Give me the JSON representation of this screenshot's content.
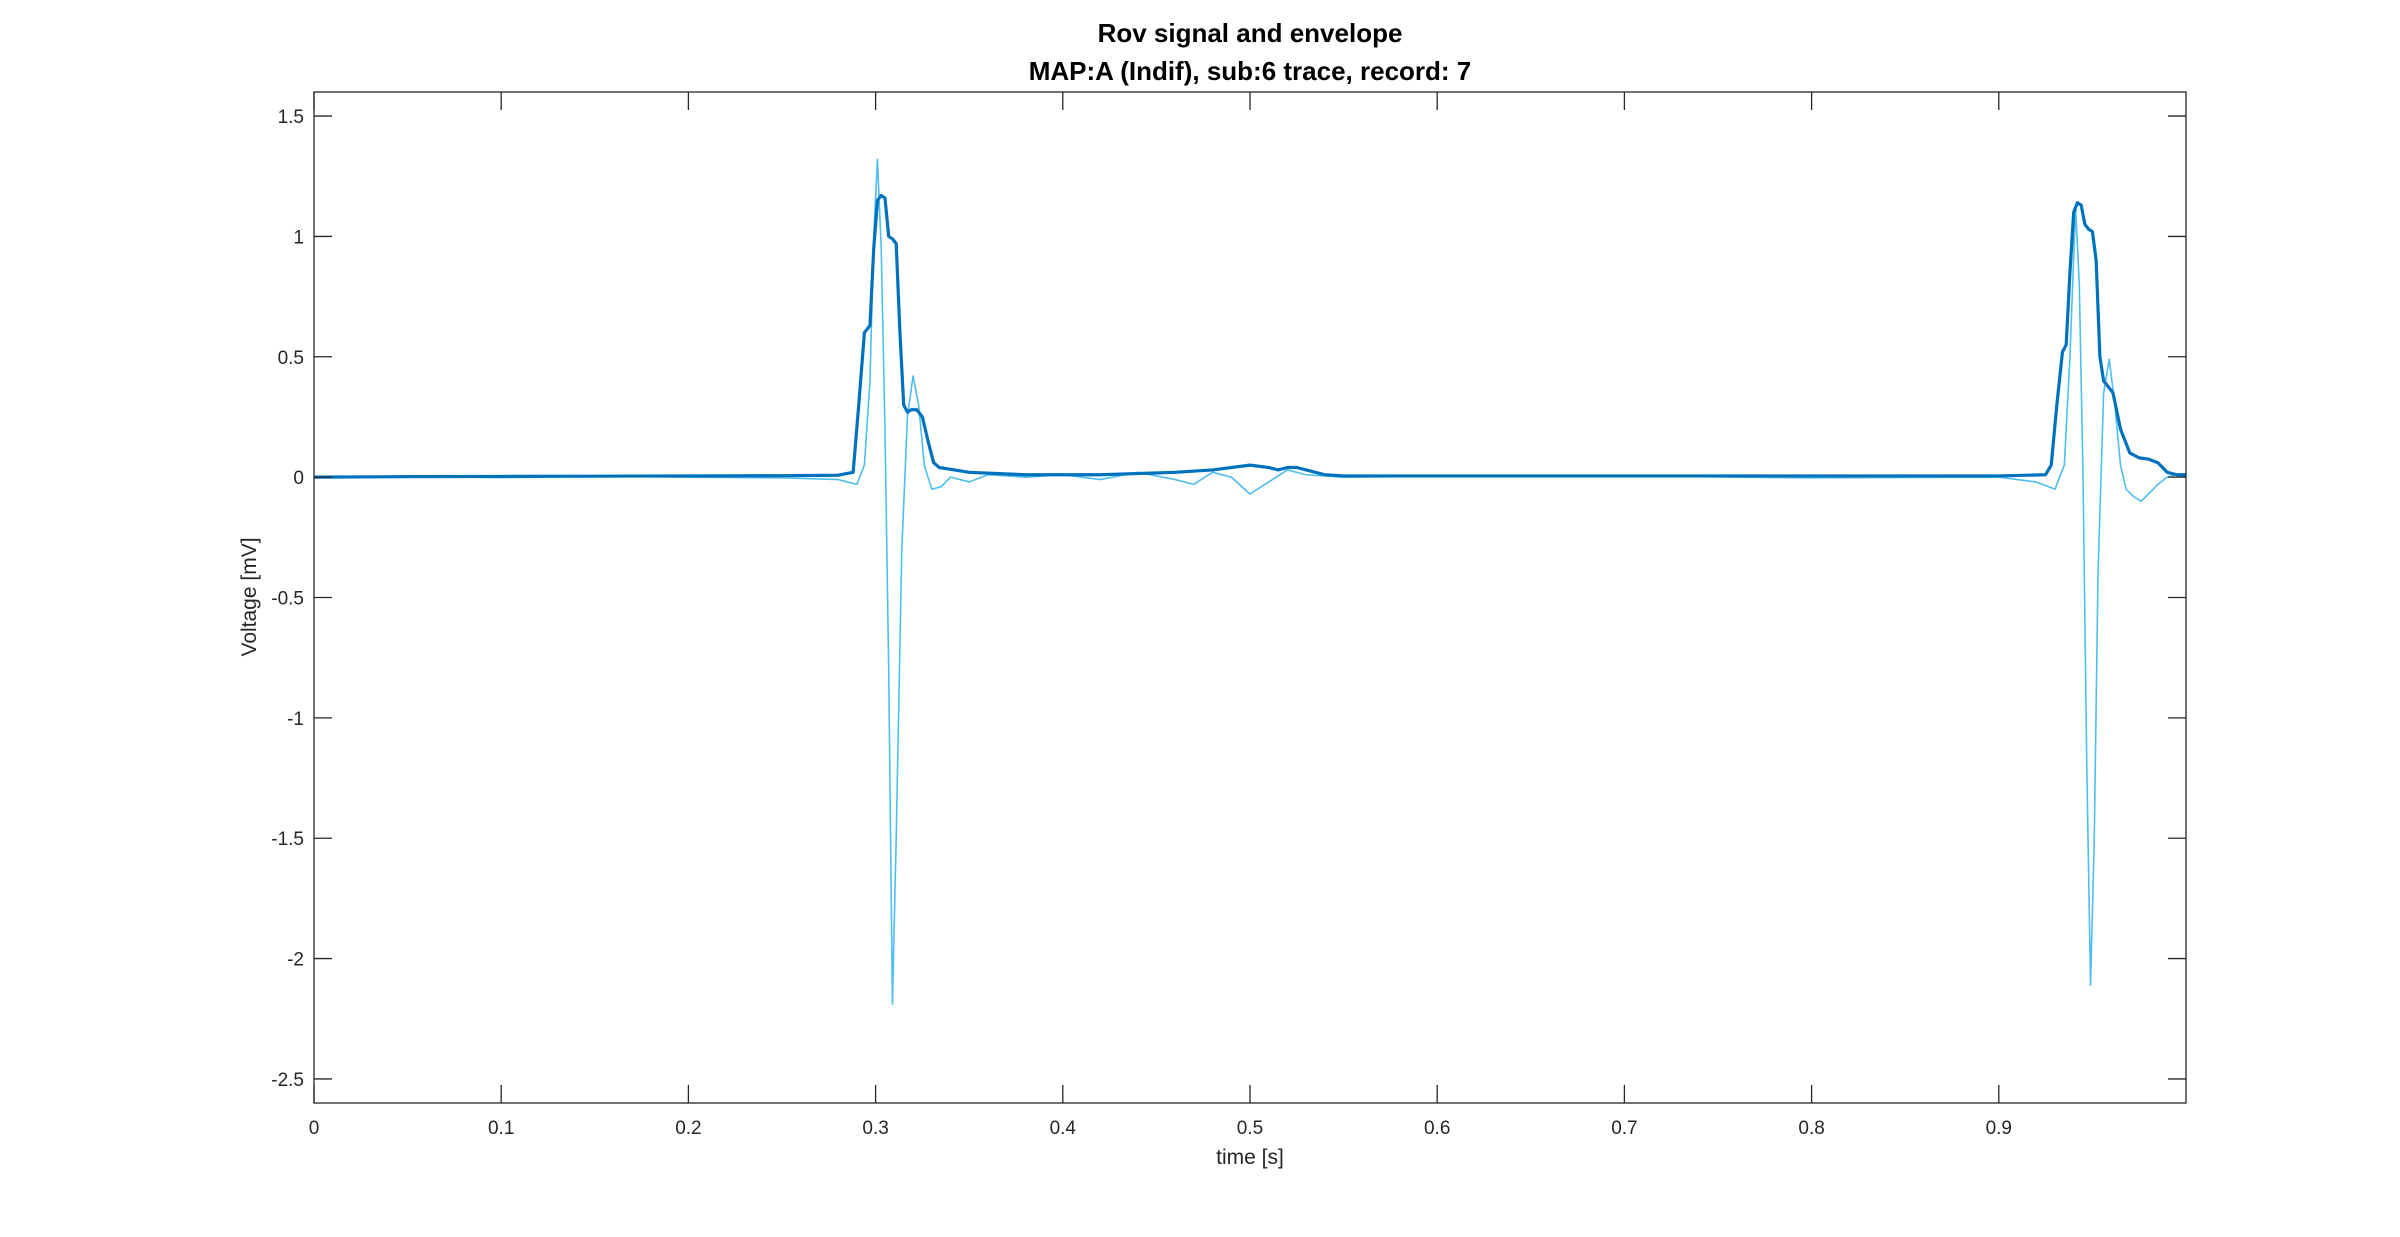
{
  "chart_data": {
    "type": "line",
    "title": "Rov signal and envelope",
    "subtitle": "MAP:A (Indif), sub:6 trace, record: 7",
    "xlabel": "time [s]",
    "ylabel": "Voltage [mV]",
    "xlim": [
      0,
      1
    ],
    "ylim": [
      -2.6,
      1.6
    ],
    "xticks": [
      0,
      0.1,
      0.2,
      0.3,
      0.4,
      0.5,
      0.6,
      0.7,
      0.8,
      0.9
    ],
    "xtick_labels": [
      "0",
      "0.1",
      "0.2",
      "0.3",
      "0.4",
      "0.5",
      "0.6",
      "0.7",
      "0.8",
      "0.9"
    ],
    "yticks": [
      -2.5,
      -2,
      -1.5,
      -1,
      -0.5,
      0,
      0.5,
      1,
      1.5
    ],
    "ytick_labels": [
      "-2.5",
      "-2",
      "-1.5",
      "-1",
      "-0.5",
      "0",
      "0.5",
      "1",
      "1.5"
    ],
    "grid": false,
    "legend": "none",
    "series": [
      {
        "color": "#4DBEEE",
        "line_width": "thin",
        "x": [
          0,
          0.05,
          0.1,
          0.15,
          0.2,
          0.25,
          0.28,
          0.29,
          0.294,
          0.297,
          0.299,
          0.301,
          0.303,
          0.305,
          0.307,
          0.309,
          0.311,
          0.314,
          0.317,
          0.32,
          0.323,
          0.326,
          0.33,
          0.335,
          0.34,
          0.35,
          0.36,
          0.38,
          0.4,
          0.42,
          0.44,
          0.46,
          0.47,
          0.48,
          0.49,
          0.5,
          0.51,
          0.52,
          0.53,
          0.55,
          0.6,
          0.7,
          0.8,
          0.9,
          0.92,
          0.93,
          0.935,
          0.938,
          0.941,
          0.943,
          0.945,
          0.947,
          0.949,
          0.951,
          0.953,
          0.956,
          0.959,
          0.962,
          0.965,
          0.968,
          0.972,
          0.976,
          0.98,
          0.985,
          0.99,
          0.995,
          1.0
        ],
        "y": [
          0,
          0.003,
          -0.002,
          0.004,
          0,
          -0.003,
          -0.01,
          -0.03,
          0.05,
          0.4,
          1.0,
          1.32,
          0.95,
          0.2,
          -0.8,
          -2.19,
          -1.5,
          -0.3,
          0.25,
          0.42,
          0.3,
          0.05,
          -0.05,
          -0.04,
          0.0,
          -0.02,
          0.01,
          0.0,
          0.01,
          -0.01,
          0.02,
          -0.01,
          -0.03,
          0.02,
          0.0,
          -0.07,
          -0.02,
          0.03,
          0.01,
          0.0,
          0.003,
          0.005,
          -0.003,
          0.0,
          -0.02,
          -0.05,
          0.05,
          0.5,
          1.12,
          0.8,
          0.0,
          -1.2,
          -2.11,
          -1.5,
          -0.4,
          0.35,
          0.49,
          0.3,
          0.05,
          -0.05,
          -0.08,
          -0.1,
          -0.07,
          -0.03,
          0.0,
          0.01,
          0.0
        ]
      },
      {
        "color": "#0072BD",
        "line_width": "thick",
        "x": [
          0,
          0.05,
          0.1,
          0.15,
          0.2,
          0.25,
          0.28,
          0.288,
          0.291,
          0.294,
          0.297,
          0.299,
          0.301,
          0.303,
          0.305,
          0.307,
          0.309,
          0.311,
          0.313,
          0.315,
          0.317,
          0.319,
          0.322,
          0.325,
          0.328,
          0.331,
          0.334,
          0.338,
          0.35,
          0.38,
          0.42,
          0.46,
          0.48,
          0.5,
          0.51,
          0.515,
          0.52,
          0.525,
          0.53,
          0.54,
          0.55,
          0.6,
          0.7,
          0.8,
          0.9,
          0.925,
          0.928,
          0.931,
          0.934,
          0.936,
          0.938,
          0.94,
          0.942,
          0.944,
          0.946,
          0.948,
          0.95,
          0.952,
          0.954,
          0.956,
          0.958,
          0.961,
          0.965,
          0.97,
          0.975,
          0.98,
          0.985,
          0.99,
          0.995,
          1.0
        ],
        "y": [
          0.0,
          0.002,
          0.003,
          0.004,
          0.005,
          0.006,
          0.008,
          0.02,
          0.3,
          0.6,
          0.63,
          0.95,
          1.15,
          1.17,
          1.16,
          1.0,
          0.99,
          0.97,
          0.6,
          0.3,
          0.27,
          0.28,
          0.28,
          0.25,
          0.15,
          0.06,
          0.04,
          0.035,
          0.02,
          0.01,
          0.01,
          0.02,
          0.03,
          0.05,
          0.04,
          0.03,
          0.04,
          0.04,
          0.03,
          0.01,
          0.005,
          0.005,
          0.005,
          0.005,
          0.005,
          0.01,
          0.05,
          0.3,
          0.52,
          0.55,
          0.85,
          1.1,
          1.14,
          1.13,
          1.05,
          1.03,
          1.02,
          0.9,
          0.5,
          0.4,
          0.38,
          0.35,
          0.2,
          0.1,
          0.08,
          0.075,
          0.06,
          0.02,
          0.01,
          0.01
        ]
      }
    ]
  }
}
